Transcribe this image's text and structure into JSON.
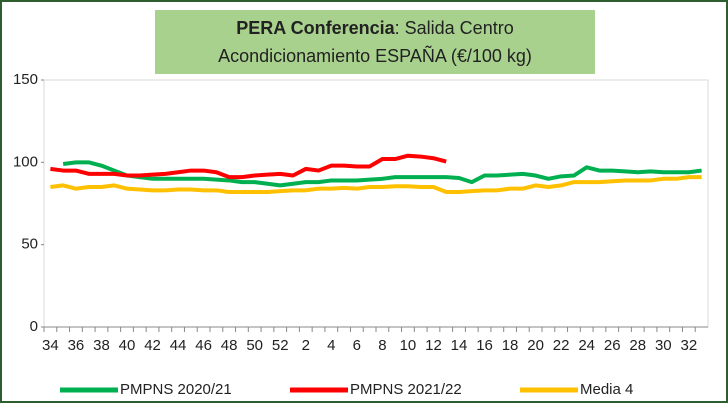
{
  "chart_data": {
    "type": "line",
    "title": [
      "PERA Conferencia",
      ": Salida Centro",
      "Acondicionamiento  ESPAÑA (€/100 kg)"
    ],
    "categories": [
      "34",
      null,
      "36",
      null,
      "38",
      null,
      "40",
      null,
      "42",
      null,
      "44",
      null,
      "46",
      null,
      "48",
      null,
      "50",
      null,
      "52",
      null,
      "2",
      null,
      "4",
      null,
      "6",
      null,
      "8",
      null,
      "10",
      null,
      "12",
      null,
      "14",
      null,
      "16",
      null,
      "18",
      null,
      "20",
      null,
      "22",
      null,
      "24",
      null,
      "26",
      null,
      "28",
      null,
      "30",
      null,
      "32",
      null
    ],
    "series": [
      {
        "name": "PMPNS 2020/21",
        "color": "#00b050",
        "values": [
          null,
          99,
          100,
          100,
          98,
          95,
          92,
          91,
          90,
          90,
          90,
          90,
          90,
          89.5,
          89,
          88,
          88,
          87,
          86,
          87,
          88,
          88,
          89,
          89,
          89,
          89.5,
          90,
          91,
          91,
          91,
          91,
          91,
          90.5,
          88,
          92,
          92,
          92.5,
          93,
          92,
          90,
          91.5,
          92,
          97,
          95,
          95,
          94.5,
          94,
          94.5,
          94,
          94,
          94,
          95
        ]
      },
      {
        "name": "PMPNS 2021/22",
        "color": "#ff0000",
        "values": [
          96,
          95,
          95,
          93,
          93,
          93,
          92,
          92,
          92.5,
          93,
          94,
          95,
          95,
          94,
          91,
          91,
          92,
          92.5,
          93,
          92,
          96,
          95,
          98,
          98,
          97.5,
          97.5,
          102,
          102,
          104,
          103.5,
          102.5,
          100.5,
          null,
          null,
          null,
          null,
          null,
          null,
          null,
          null,
          null,
          null,
          null,
          null,
          null,
          null,
          null,
          null,
          null,
          null,
          null,
          null
        ]
      },
      {
        "name": "Media 4",
        "color": "#ffc000",
        "values": [
          85,
          86,
          84,
          85,
          85,
          86,
          84,
          83.5,
          83,
          83,
          83.5,
          83.5,
          83,
          83,
          82,
          82,
          82,
          82,
          82.5,
          83,
          83,
          84,
          84,
          84.5,
          84,
          85,
          85,
          85.5,
          85.5,
          85,
          85,
          82,
          82,
          82.5,
          83,
          83,
          84,
          84,
          86,
          85,
          86,
          88,
          88,
          88,
          88.5,
          89,
          89,
          89,
          90,
          90,
          91,
          91
        ]
      }
    ],
    "ylim": [
      0,
      150
    ],
    "yticks": [
      0,
      50,
      100,
      150
    ],
    "legend": "bottom"
  }
}
